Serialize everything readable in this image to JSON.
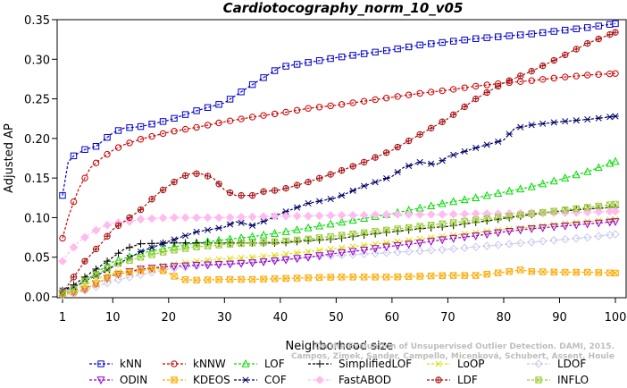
{
  "chart_data": {
    "type": "line",
    "title": "Cardiotocography_norm_10_v05",
    "xlabel": "Neighborhood size",
    "ylabel": "Adjusted AP",
    "xlim": [
      1,
      100
    ],
    "ylim": [
      0,
      0.35
    ],
    "xticks": [
      "1",
      "10",
      "20",
      "30",
      "40",
      "50",
      "60",
      "70",
      "80",
      "90",
      "100"
    ],
    "yticks": [
      "0.00",
      "0.05",
      "0.10",
      "0.15",
      "0.20",
      "0.25",
      "0.30",
      "0.35"
    ],
    "grid": false,
    "legend_position": "bottom",
    "watermark": [
      "Campos, Zimek, Sander, Campello, Micenková, Schubert, Assent, Houle",
      "On the Evaluation of Unsupervised Outlier Detection. DAMI, 2015."
    ],
    "series": [
      {
        "name": "kNN",
        "color": "#0000cc",
        "marker": "square",
        "points": [
          [
            1,
            0.128
          ],
          [
            2,
            0.17
          ],
          [
            3,
            0.178
          ],
          [
            4,
            0.182
          ],
          [
            5,
            0.186
          ],
          [
            7,
            0.19
          ],
          [
            10,
            0.207
          ],
          [
            12,
            0.213
          ],
          [
            15,
            0.215
          ],
          [
            20,
            0.223
          ],
          [
            25,
            0.235
          ],
          [
            30,
            0.245
          ],
          [
            35,
            0.268
          ],
          [
            40,
            0.29
          ],
          [
            45,
            0.296
          ],
          [
            50,
            0.302
          ],
          [
            55,
            0.307
          ],
          [
            60,
            0.312
          ],
          [
            65,
            0.318
          ],
          [
            70,
            0.322
          ],
          [
            75,
            0.326
          ],
          [
            80,
            0.329
          ],
          [
            85,
            0.332
          ],
          [
            90,
            0.336
          ],
          [
            95,
            0.34
          ],
          [
            100,
            0.345
          ]
        ]
      },
      {
        "name": "kNNW",
        "color": "#cc0000",
        "marker": "circle",
        "points": [
          [
            1,
            0.074
          ],
          [
            2,
            0.1
          ],
          [
            3,
            0.12
          ],
          [
            4,
            0.138
          ],
          [
            5,
            0.15
          ],
          [
            6,
            0.163
          ],
          [
            8,
            0.175
          ],
          [
            10,
            0.185
          ],
          [
            12,
            0.192
          ],
          [
            15,
            0.199
          ],
          [
            20,
            0.208
          ],
          [
            25,
            0.214
          ],
          [
            30,
            0.221
          ],
          [
            35,
            0.227
          ],
          [
            40,
            0.232
          ],
          [
            45,
            0.238
          ],
          [
            50,
            0.242
          ],
          [
            55,
            0.247
          ],
          [
            60,
            0.252
          ],
          [
            65,
            0.257
          ],
          [
            70,
            0.261
          ],
          [
            75,
            0.266
          ],
          [
            80,
            0.27
          ],
          [
            85,
            0.273
          ],
          [
            90,
            0.277
          ],
          [
            95,
            0.28
          ],
          [
            100,
            0.282
          ]
        ]
      },
      {
        "name": "LOF",
        "color": "#00dd00",
        "marker": "triangle",
        "points": [
          [
            1,
            0.005
          ],
          [
            3,
            0.01
          ],
          [
            5,
            0.02
          ],
          [
            8,
            0.035
          ],
          [
            10,
            0.044
          ],
          [
            15,
            0.055
          ],
          [
            20,
            0.062
          ],
          [
            25,
            0.068
          ],
          [
            30,
            0.072
          ],
          [
            35,
            0.076
          ],
          [
            40,
            0.081
          ],
          [
            45,
            0.087
          ],
          [
            50,
            0.093
          ],
          [
            55,
            0.099
          ],
          [
            60,
            0.105
          ],
          [
            65,
            0.112
          ],
          [
            70,
            0.119
          ],
          [
            75,
            0.125
          ],
          [
            80,
            0.132
          ],
          [
            85,
            0.139
          ],
          [
            90,
            0.148
          ],
          [
            95,
            0.158
          ],
          [
            100,
            0.171
          ]
        ]
      },
      {
        "name": "SimplifiedLOF",
        "color": "#000000",
        "marker": "plus",
        "points": [
          [
            1,
            0.008
          ],
          [
            3,
            0.015
          ],
          [
            5,
            0.025
          ],
          [
            8,
            0.04
          ],
          [
            10,
            0.05
          ],
          [
            12,
            0.06
          ],
          [
            15,
            0.067
          ],
          [
            20,
            0.068
          ],
          [
            25,
            0.068
          ],
          [
            30,
            0.068
          ],
          [
            35,
            0.068
          ],
          [
            40,
            0.068
          ],
          [
            45,
            0.071
          ],
          [
            50,
            0.073
          ],
          [
            55,
            0.078
          ],
          [
            60,
            0.082
          ],
          [
            65,
            0.086
          ],
          [
            70,
            0.089
          ],
          [
            75,
            0.094
          ],
          [
            80,
            0.099
          ],
          [
            85,
            0.104
          ],
          [
            90,
            0.108
          ],
          [
            95,
            0.111
          ],
          [
            100,
            0.113
          ]
        ]
      },
      {
        "name": "LoOP",
        "color": "#dddd00",
        "marker": "cross",
        "points": [
          [
            1,
            0.005
          ],
          [
            3,
            0.008
          ],
          [
            5,
            0.015
          ],
          [
            8,
            0.025
          ],
          [
            10,
            0.03
          ],
          [
            15,
            0.035
          ],
          [
            20,
            0.04
          ],
          [
            25,
            0.045
          ],
          [
            30,
            0.048
          ],
          [
            35,
            0.05
          ],
          [
            40,
            0.053
          ],
          [
            45,
            0.057
          ],
          [
            50,
            0.061
          ],
          [
            55,
            0.065
          ],
          [
            60,
            0.069
          ],
          [
            65,
            0.073
          ],
          [
            70,
            0.077
          ],
          [
            75,
            0.081
          ],
          [
            80,
            0.085
          ],
          [
            85,
            0.088
          ],
          [
            90,
            0.092
          ],
          [
            95,
            0.095
          ],
          [
            100,
            0.098
          ]
        ]
      },
      {
        "name": "LDOF",
        "color": "#c8c8ee",
        "marker": "diamond",
        "points": [
          [
            1,
            0.002
          ],
          [
            3,
            0.004
          ],
          [
            5,
            0.008
          ],
          [
            8,
            0.015
          ],
          [
            10,
            0.02
          ],
          [
            15,
            0.028
          ],
          [
            20,
            0.035
          ],
          [
            25,
            0.039
          ],
          [
            30,
            0.041
          ],
          [
            35,
            0.044
          ],
          [
            40,
            0.047
          ],
          [
            45,
            0.05
          ],
          [
            50,
            0.052
          ],
          [
            55,
            0.054
          ],
          [
            60,
            0.056
          ],
          [
            65,
            0.058
          ],
          [
            70,
            0.06
          ],
          [
            75,
            0.063
          ],
          [
            80,
            0.066
          ],
          [
            85,
            0.069
          ],
          [
            90,
            0.072
          ],
          [
            95,
            0.075
          ],
          [
            100,
            0.079
          ]
        ]
      },
      {
        "name": "ODIN",
        "color": "#9900cc",
        "marker": "triangle-down",
        "points": [
          [
            1,
            0.004
          ],
          [
            3,
            0.006
          ],
          [
            5,
            0.01
          ],
          [
            8,
            0.02
          ],
          [
            10,
            0.027
          ],
          [
            15,
            0.035
          ],
          [
            20,
            0.038
          ],
          [
            25,
            0.04
          ],
          [
            30,
            0.041
          ],
          [
            35,
            0.043
          ],
          [
            40,
            0.046
          ],
          [
            45,
            0.05
          ],
          [
            50,
            0.055
          ],
          [
            55,
            0.059
          ],
          [
            60,
            0.064
          ],
          [
            65,
            0.068
          ],
          [
            70,
            0.073
          ],
          [
            75,
            0.077
          ],
          [
            80,
            0.082
          ],
          [
            85,
            0.086
          ],
          [
            90,
            0.089
          ],
          [
            95,
            0.092
          ],
          [
            100,
            0.095
          ]
        ]
      },
      {
        "name": "KDEOS",
        "color": "#ffaa00",
        "marker": "square-x",
        "points": [
          [
            1,
            0.004
          ],
          [
            3,
            0.006
          ],
          [
            5,
            0.01
          ],
          [
            8,
            0.02
          ],
          [
            10,
            0.028
          ],
          [
            15,
            0.033
          ],
          [
            18,
            0.036
          ],
          [
            20,
            0.03
          ],
          [
            22,
            0.022
          ],
          [
            25,
            0.021
          ],
          [
            30,
            0.022
          ],
          [
            35,
            0.022
          ],
          [
            40,
            0.023
          ],
          [
            45,
            0.024
          ],
          [
            50,
            0.025
          ],
          [
            55,
            0.025
          ],
          [
            60,
            0.025
          ],
          [
            65,
            0.026
          ],
          [
            70,
            0.027
          ],
          [
            75,
            0.027
          ],
          [
            80,
            0.031
          ],
          [
            83,
            0.034
          ],
          [
            85,
            0.032
          ],
          [
            90,
            0.031
          ],
          [
            95,
            0.031
          ],
          [
            100,
            0.03
          ]
        ]
      },
      {
        "name": "COF",
        "color": "#000066",
        "marker": "asterisk",
        "points": [
          [
            1,
            0.008
          ],
          [
            3,
            0.012
          ],
          [
            5,
            0.02
          ],
          [
            8,
            0.03
          ],
          [
            10,
            0.038
          ],
          [
            15,
            0.057
          ],
          [
            20,
            0.07
          ],
          [
            25,
            0.082
          ],
          [
            30,
            0.088
          ],
          [
            32,
            0.095
          ],
          [
            35,
            0.09
          ],
          [
            38,
            0.098
          ],
          [
            40,
            0.105
          ],
          [
            45,
            0.118
          ],
          [
            50,
            0.125
          ],
          [
            55,
            0.14
          ],
          [
            60,
            0.152
          ],
          [
            62,
            0.163
          ],
          [
            65,
            0.17
          ],
          [
            68,
            0.167
          ],
          [
            70,
            0.177
          ],
          [
            75,
            0.188
          ],
          [
            80,
            0.198
          ],
          [
            82,
            0.213
          ],
          [
            85,
            0.217
          ],
          [
            90,
            0.221
          ],
          [
            95,
            0.224
          ],
          [
            100,
            0.228
          ]
        ]
      },
      {
        "name": "FastABOD",
        "color": "#ffbbee",
        "marker": "diamond-filled",
        "points": [
          [
            1,
            0.045
          ],
          [
            2,
            0.055
          ],
          [
            4,
            0.07
          ],
          [
            6,
            0.08
          ],
          [
            8,
            0.088
          ],
          [
            10,
            0.093
          ],
          [
            13,
            0.095
          ],
          [
            15,
            0.098
          ],
          [
            20,
            0.1
          ],
          [
            25,
            0.1
          ],
          [
            30,
            0.1
          ],
          [
            35,
            0.101
          ],
          [
            40,
            0.102
          ],
          [
            45,
            0.102
          ],
          [
            50,
            0.103
          ],
          [
            55,
            0.103
          ],
          [
            60,
            0.104
          ],
          [
            65,
            0.104
          ],
          [
            70,
            0.104
          ],
          [
            75,
            0.105
          ],
          [
            80,
            0.105
          ],
          [
            85,
            0.106
          ],
          [
            90,
            0.106
          ],
          [
            95,
            0.107
          ],
          [
            100,
            0.108
          ]
        ]
      },
      {
        "name": "LDF",
        "color": "#aa1111",
        "marker": "circle-plus",
        "points": [
          [
            1,
            0.005
          ],
          [
            3,
            0.025
          ],
          [
            5,
            0.045
          ],
          [
            8,
            0.068
          ],
          [
            10,
            0.085
          ],
          [
            12,
            0.095
          ],
          [
            15,
            0.11
          ],
          [
            18,
            0.13
          ],
          [
            20,
            0.14
          ],
          [
            22,
            0.15
          ],
          [
            24,
            0.156
          ],
          [
            26,
            0.155
          ],
          [
            28,
            0.15
          ],
          [
            30,
            0.135
          ],
          [
            32,
            0.128
          ],
          [
            35,
            0.128
          ],
          [
            37,
            0.133
          ],
          [
            40,
            0.135
          ],
          [
            45,
            0.145
          ],
          [
            50,
            0.157
          ],
          [
            55,
            0.17
          ],
          [
            60,
            0.185
          ],
          [
            65,
            0.205
          ],
          [
            70,
            0.225
          ],
          [
            75,
            0.25
          ],
          [
            80,
            0.27
          ],
          [
            85,
            0.285
          ],
          [
            90,
            0.302
          ],
          [
            95,
            0.32
          ],
          [
            100,
            0.334
          ]
        ]
      },
      {
        "name": "INFLO",
        "color": "#99cc33",
        "marker": "square-x",
        "points": [
          [
            1,
            0.005
          ],
          [
            3,
            0.01
          ],
          [
            5,
            0.02
          ],
          [
            8,
            0.032
          ],
          [
            10,
            0.04
          ],
          [
            15,
            0.05
          ],
          [
            20,
            0.058
          ],
          [
            25,
            0.063
          ],
          [
            30,
            0.066
          ],
          [
            35,
            0.068
          ],
          [
            40,
            0.07
          ],
          [
            45,
            0.073
          ],
          [
            50,
            0.077
          ],
          [
            55,
            0.081
          ],
          [
            60,
            0.085
          ],
          [
            65,
            0.089
          ],
          [
            70,
            0.093
          ],
          [
            75,
            0.097
          ],
          [
            80,
            0.101
          ],
          [
            85,
            0.105
          ],
          [
            90,
            0.109
          ],
          [
            95,
            0.113
          ],
          [
            100,
            0.117
          ]
        ]
      }
    ]
  }
}
